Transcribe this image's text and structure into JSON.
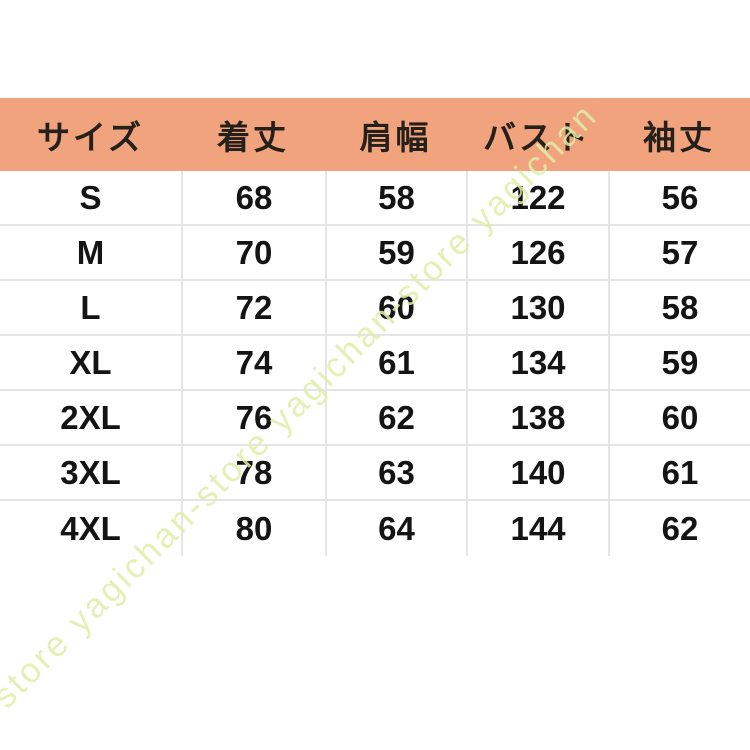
{
  "colors": {
    "header_bg": "#F0A37C",
    "header_text": "#26201b",
    "body_text": "#141414",
    "divider": "#e5e5e7",
    "watermark": "#dfeda8"
  },
  "watermark": {
    "text": "store yagichan-store yagichan-store yagichan"
  },
  "chart_data": {
    "type": "table",
    "columns": [
      "サイズ",
      "着丈",
      "肩幅",
      "バスト",
      "袖丈"
    ],
    "rows": [
      [
        "S",
        "68",
        "58",
        "122",
        "56"
      ],
      [
        "M",
        "70",
        "59",
        "126",
        "57"
      ],
      [
        "L",
        "72",
        "60",
        "130",
        "58"
      ],
      [
        "XL",
        "74",
        "61",
        "134",
        "59"
      ],
      [
        "2XL",
        "76",
        "62",
        "138",
        "60"
      ],
      [
        "3XL",
        "78",
        "63",
        "140",
        "61"
      ],
      [
        "4XL",
        "80",
        "64",
        "144",
        "62"
      ]
    ]
  }
}
